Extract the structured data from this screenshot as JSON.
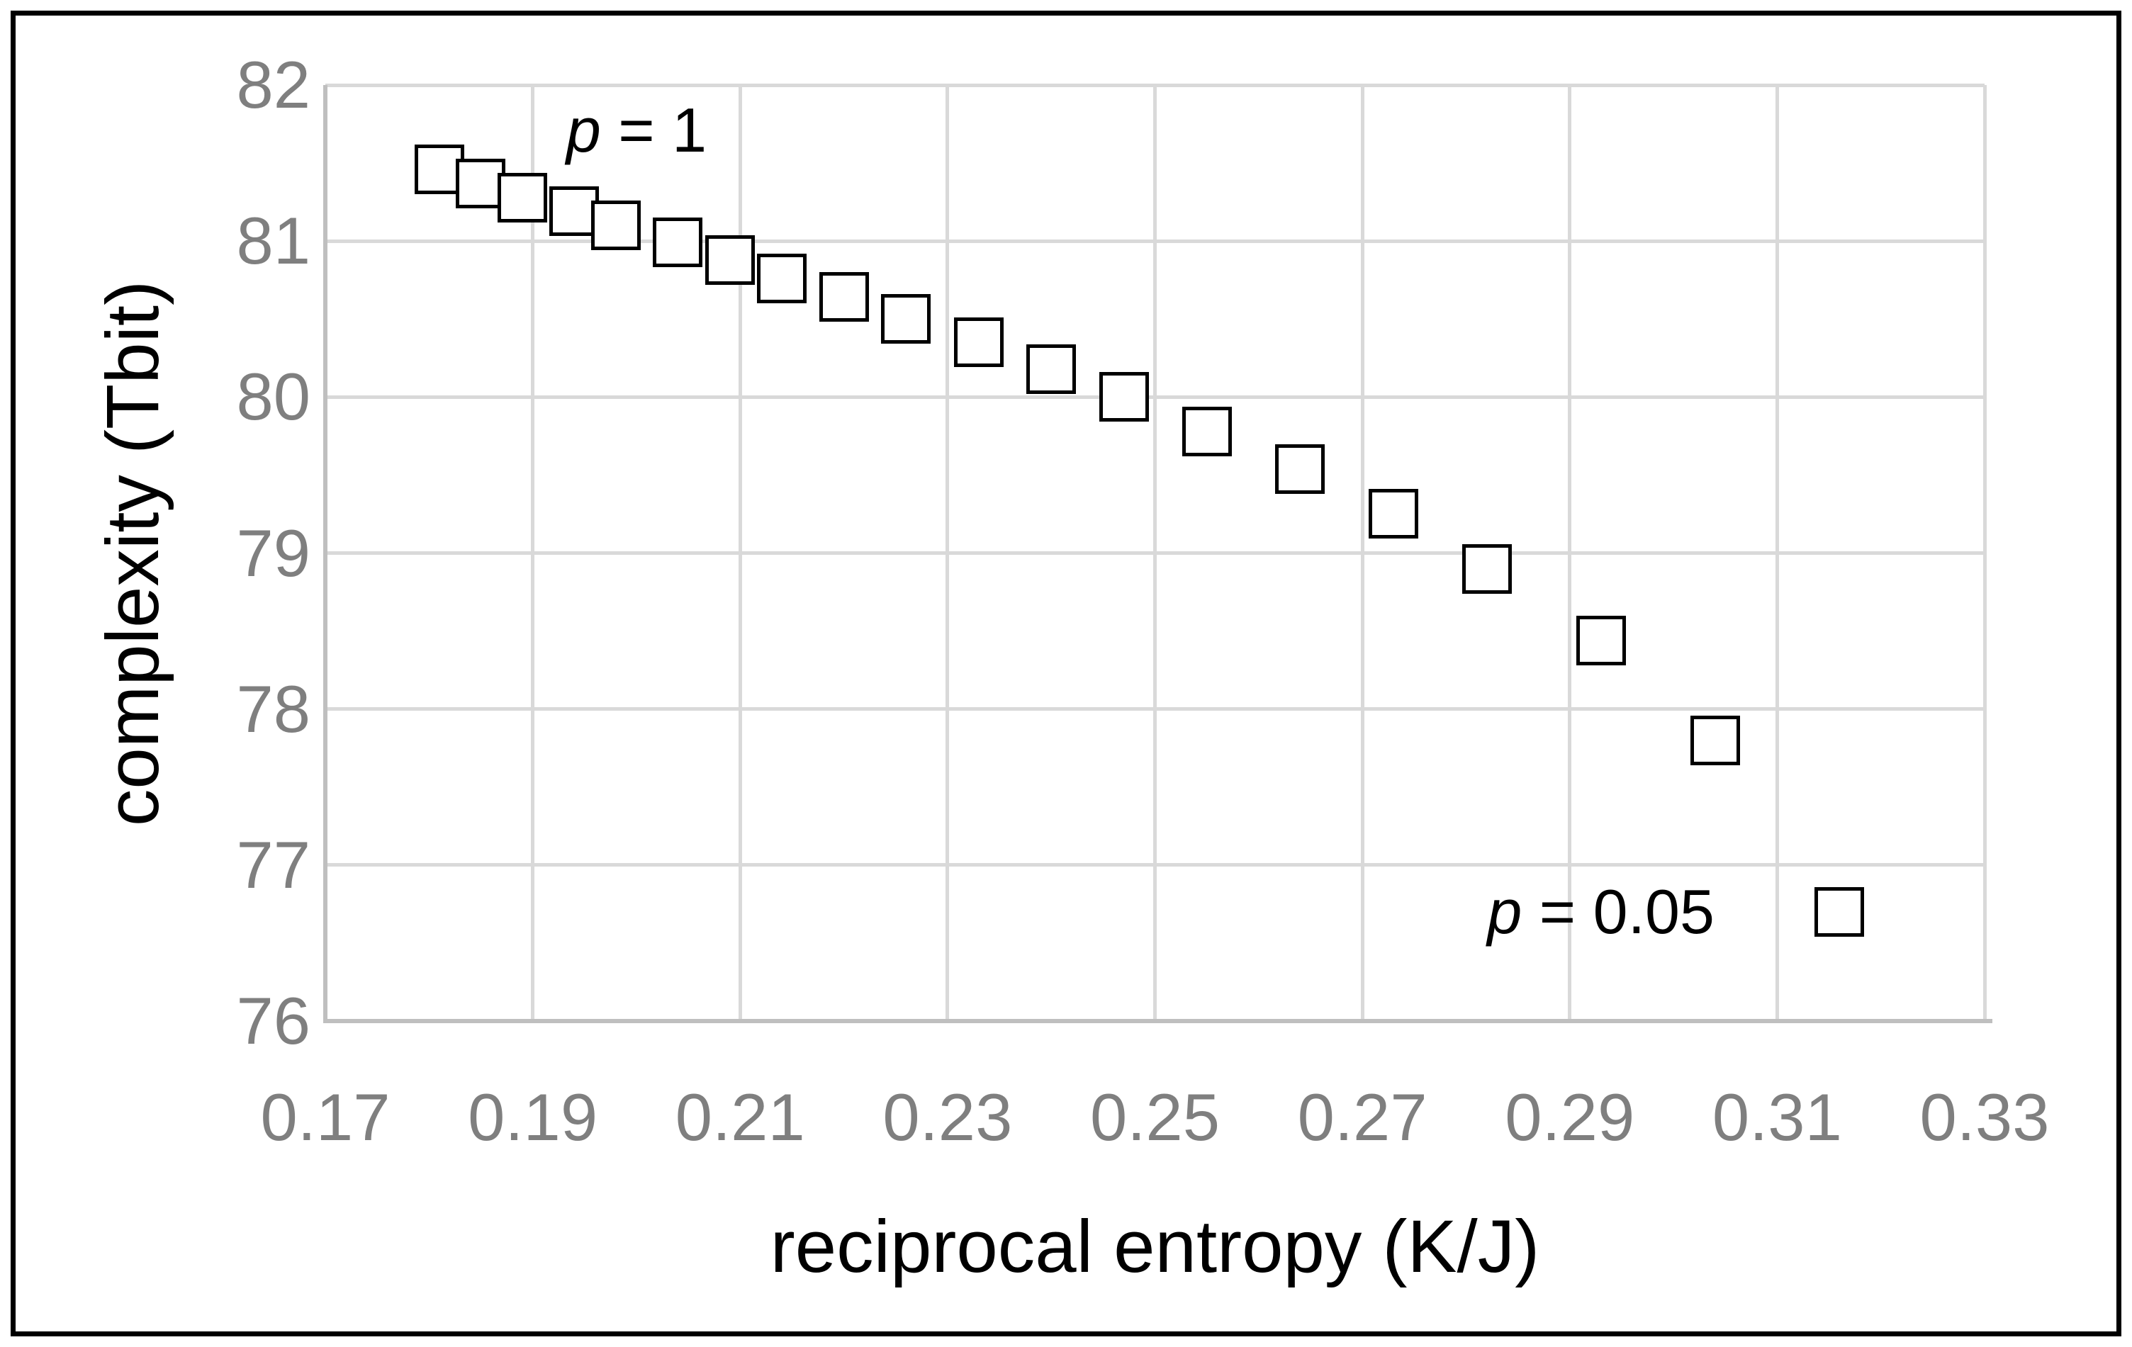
{
  "chart_data": {
    "type": "scatter",
    "title": "",
    "xlabel": "reciprocal entropy (K/J)",
    "ylabel": "complexity (Tbit)",
    "xlim": [
      0.17,
      0.33
    ],
    "ylim": [
      76,
      82
    ],
    "grid": true,
    "legend_position": "none",
    "x_ticks": [
      "0.17",
      "0.19",
      "0.21",
      "0.23",
      "0.25",
      "0.27",
      "0.29",
      "0.31",
      "0.33"
    ],
    "y_ticks": [
      "82",
      "81",
      "80",
      "79",
      "78",
      "77",
      "76"
    ],
    "series": [
      {
        "name": "p = 1",
        "marker": "open-square",
        "points": [
          [
            0.181,
            81.46
          ],
          [
            0.185,
            81.37
          ],
          [
            0.189,
            81.28
          ],
          [
            0.194,
            81.19
          ],
          [
            0.198,
            81.1
          ],
          [
            0.204,
            80.99
          ],
          [
            0.209,
            80.88
          ],
          [
            0.214,
            80.76
          ],
          [
            0.22,
            80.64
          ],
          [
            0.226,
            80.5
          ],
          [
            0.233,
            80.35
          ],
          [
            0.24,
            80.18
          ],
          [
            0.247,
            80.0
          ],
          [
            0.255,
            79.78
          ],
          [
            0.264,
            79.54
          ],
          [
            0.273,
            79.25
          ],
          [
            0.282,
            78.9
          ],
          [
            0.293,
            78.44
          ],
          [
            0.304,
            77.8
          ]
        ]
      },
      {
        "name": "p = 0.05",
        "marker": "open-square",
        "points": [
          [
            0.316,
            76.7
          ]
        ]
      }
    ],
    "annotations": [
      {
        "x": 0.2,
        "y": 81.71,
        "parts": [
          {
            "text": "p",
            "italic": true
          },
          {
            "text": " = 1",
            "italic": false
          }
        ]
      },
      {
        "x": 0.293,
        "y": 76.7,
        "parts": [
          {
            "text": "p",
            "italic": true
          },
          {
            "text": " = 0.05",
            "italic": false
          }
        ]
      }
    ]
  },
  "style": {
    "gridline_color": "#d9d9d9",
    "axis_line_color": "#bfbfbf",
    "tick_label_color": "#7f7f7f",
    "text_color": "#000000",
    "marker_stroke": "#000000",
    "marker_fill": "#ffffff",
    "border_color": "#000000",
    "background": "#ffffff"
  }
}
